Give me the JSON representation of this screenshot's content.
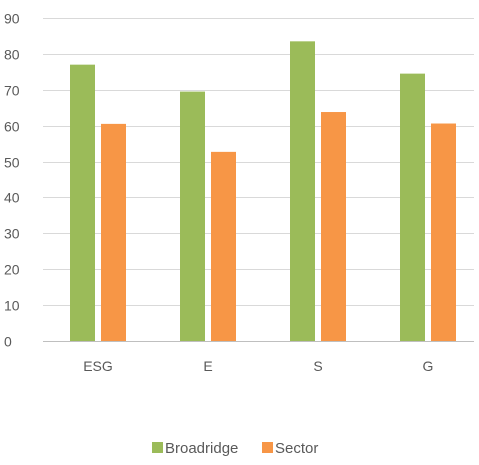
{
  "chart_data": {
    "type": "bar",
    "categories": [
      "ESG",
      "E",
      "S",
      "G"
    ],
    "series": [
      {
        "name": "Broadridge",
        "color": "#9bbb59",
        "values": [
          77,
          69.5,
          83.5,
          74.5
        ]
      },
      {
        "name": "Sector",
        "color": "#f79646",
        "values": [
          60.5,
          52.7,
          63.8,
          60.6
        ]
      }
    ],
    "ylim": [
      0,
      90
    ],
    "yticks": [
      0,
      10,
      20,
      30,
      40,
      50,
      60,
      70,
      80,
      90
    ],
    "grid": true,
    "legend_position": "bottom"
  },
  "colors": {
    "grid": "#d9d9d9",
    "axis": "#bfbfbf",
    "text": "#595959"
  }
}
